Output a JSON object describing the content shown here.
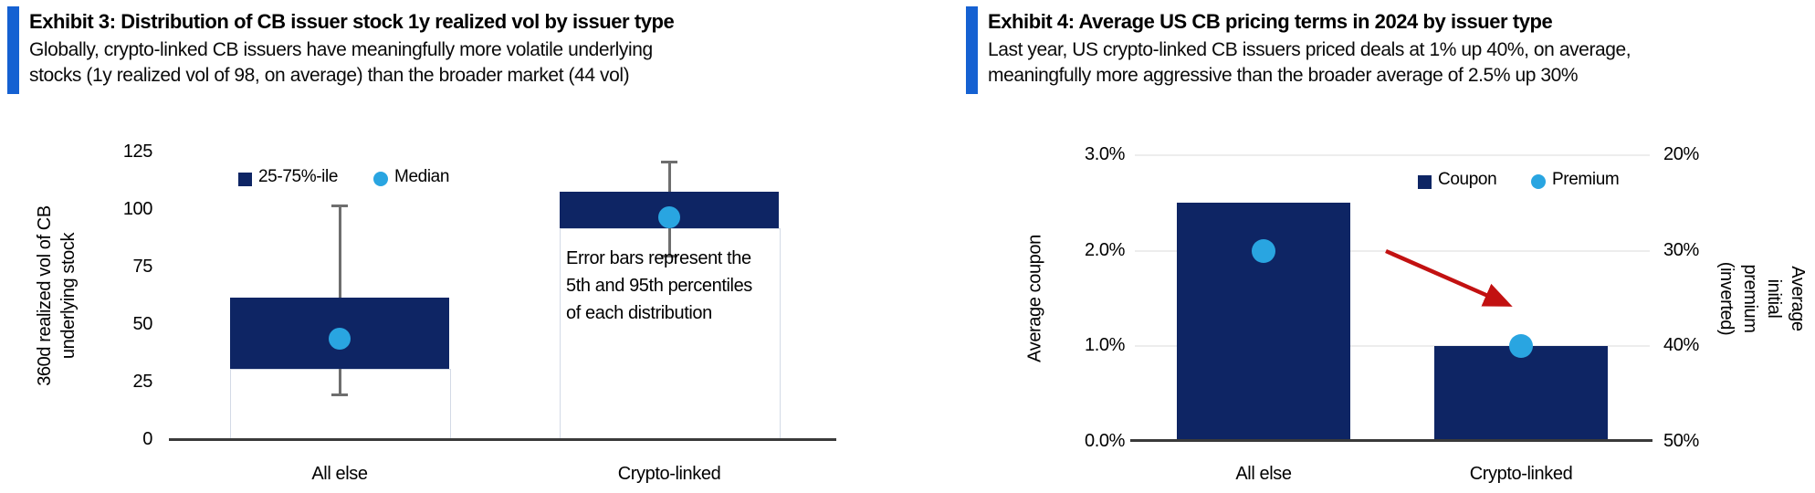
{
  "colors": {
    "navy": "#0e2564",
    "sky_blue": "#29a5e1",
    "accent_blue": "#1561d2",
    "arrow_red": "#c21111",
    "axis_gray": "#3a3a3a",
    "whisker_gray": "#6e6e6e",
    "gridline_gray": "#ededed",
    "column_outline": "#d3dae6"
  },
  "chart_data": [
    {
      "type": "box",
      "title": "Exhibit 3: Distribution of CB issuer stock 1y realized vol by issuer type",
      "subtitle": "Globally, crypto-linked CB issuers have meaningfully more volatile underlying\nstocks (1y realized vol of 98, on average) than the broader market (44 vol)",
      "ylabel": "360d realized vol of CB\nunderlying stock",
      "ylim": [
        0,
        125
      ],
      "yticks": [
        0,
        25,
        50,
        75,
        100,
        125
      ],
      "categories": [
        "All else",
        "Crypto-linked"
      ],
      "legend": [
        "25-75%-ile",
        "Median"
      ],
      "boxes": [
        {
          "category": "All else",
          "p5": 20,
          "p25": 31,
          "median": 44,
          "p75": 62,
          "p95": 102
        },
        {
          "category": "Crypto-linked",
          "p5": 80,
          "p25": 92,
          "median": 97,
          "p75": 108,
          "p95": 121
        }
      ],
      "annotation": "Error bars represent the\n5th and 95th percentiles\nof each distribution",
      "legend_position": "top-left-of-plot",
      "grid": false
    },
    {
      "type": "bar",
      "title": "Exhibit 4: Average US CB pricing terms in 2024 by issuer type",
      "subtitle": "Last year, US crypto-linked CB issuers priced deals at 1% up 40%, on average,\nmeaningfully more aggressive than the broader average of 2.5% up 30%",
      "categories": [
        "All else",
        "Crypto-linked"
      ],
      "series": [
        {
          "name": "Coupon",
          "type": "bar",
          "axis": "left",
          "values": [
            2.5,
            1.0
          ]
        },
        {
          "name": "Premium",
          "type": "point",
          "axis": "right",
          "values": [
            30,
            40
          ]
        }
      ],
      "left_axis": {
        "label": "Average coupon",
        "lim": [
          0,
          3
        ],
        "ticks": [
          {
            "v": 0,
            "label": "0.0%"
          },
          {
            "v": 1,
            "label": "1.0%"
          },
          {
            "v": 2,
            "label": "2.0%"
          },
          {
            "v": 3,
            "label": "3.0%"
          }
        ]
      },
      "right_axis": {
        "label": "Average initial premium\n(inverted)",
        "inverted": true,
        "lim": [
          50,
          20
        ],
        "ticks": [
          {
            "v": 20,
            "label": "20%"
          },
          {
            "v": 30,
            "label": "30%"
          },
          {
            "v": 40,
            "label": "40%"
          },
          {
            "v": 50,
            "label": "50%"
          }
        ]
      },
      "legend": [
        "Coupon",
        "Premium"
      ],
      "annotation_arrow": "red arrow pointing down-right from All else premium toward Crypto-linked premium",
      "grid": true
    }
  ]
}
